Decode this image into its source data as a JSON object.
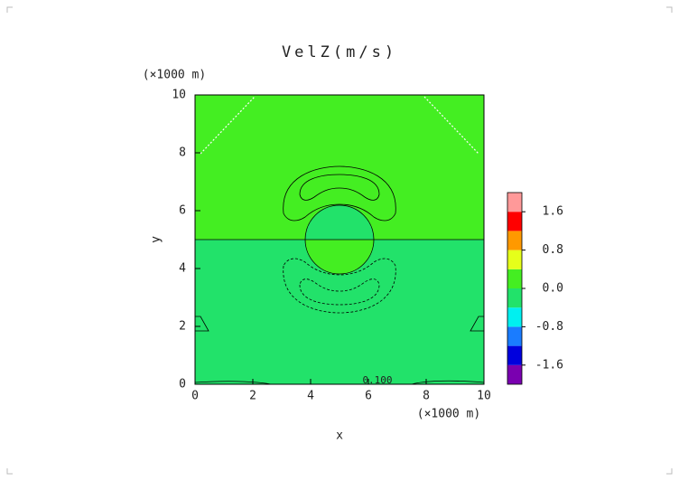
{
  "chart_data": {
    "type": "contour",
    "title": "VelZ(m/s)",
    "x_label": "x",
    "y_label": "y",
    "x_unit": "(×1000 m)",
    "y_unit": "(×1000 m)",
    "xlim": [
      0,
      10
    ],
    "ylim": [
      0,
      10
    ],
    "xticks": [
      0,
      2,
      4,
      6,
      8,
      10
    ],
    "yticks": [
      0,
      2,
      4,
      6,
      8,
      10
    ],
    "levels": [
      -2.0,
      -1.6,
      -1.2,
      -0.8,
      -0.4,
      0,
      0.4,
      0.8,
      1.2,
      1.6,
      2.0
    ],
    "colors": [
      "#7a00b0",
      "#0000dd",
      "#1a7cff",
      "#00f0f0",
      "#22e26a",
      "#44ee22",
      "#e6ff1a",
      "#ff9900",
      "#ff0000",
      "#ff9999"
    ],
    "colorbar_ticks": [
      -1.6,
      -0.8,
      {
        "value": 0,
        "label": "0.0"
      },
      0.8,
      1.6
    ],
    "annotation": "0.100"
  }
}
